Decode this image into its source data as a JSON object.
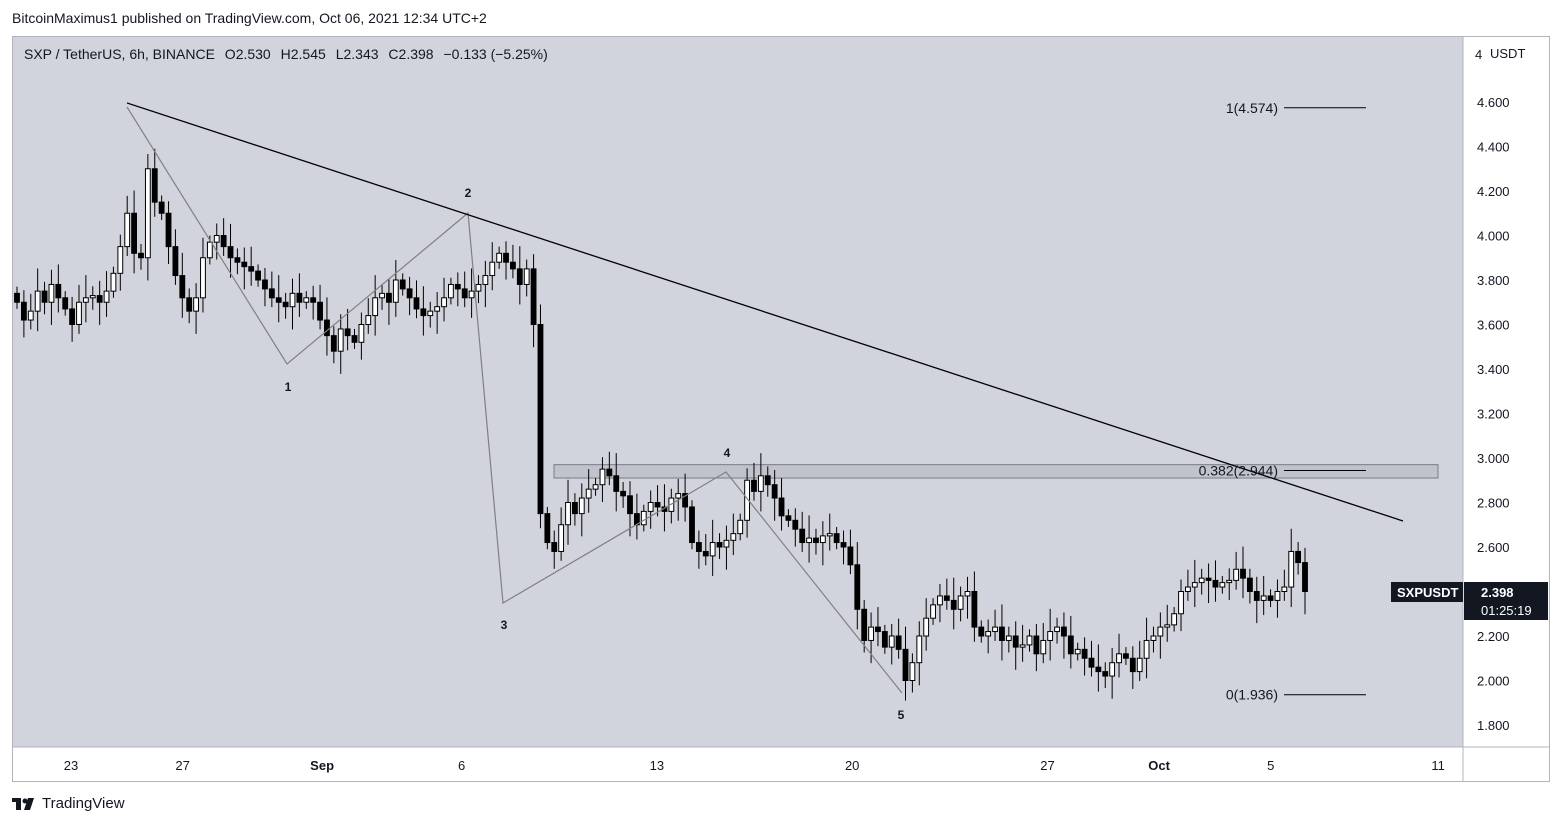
{
  "header": {
    "publisher_line": "BitcoinMaximus1 published on TradingView.com, Oct 06, 2021 12:34 UTC+2"
  },
  "ohlc_bar": {
    "symbol_line": "SXP / TetherUS, 6h, BINANCE",
    "o_label": "O",
    "o_value": "2.530",
    "h_label": "H",
    "h_value": "2.545",
    "l_label": "L",
    "l_value": "2.343",
    "c_label": "C",
    "c_value": "2.398",
    "change": "−0.133 (−5.25%)"
  },
  "price_axis": {
    "unit": "USDT",
    "top_label": "4",
    "ticks": [
      "4.600",
      "4.400",
      "4.200",
      "4.000",
      "3.800",
      "3.600",
      "3.400",
      "3.200",
      "3.000",
      "2.800",
      "2.600",
      "2.200",
      "2.000",
      "1.800"
    ]
  },
  "time_axis": {
    "ticks": [
      "23",
      "27",
      "Sep",
      "6",
      "13",
      "20",
      "27",
      "Oct",
      "5",
      "11"
    ]
  },
  "price_tag": {
    "symbol": "SXPUSDT",
    "price": "2.398",
    "countdown": "01:25:19"
  },
  "fib_levels": [
    {
      "label": "1(4.574)",
      "value": 4.574
    },
    {
      "label": "0.382(2.944)",
      "value": 2.944
    },
    {
      "label": "0(1.936)",
      "value": 1.936
    }
  ],
  "wave_labels": [
    "1",
    "2",
    "3",
    "4",
    "5"
  ],
  "colors": {
    "background": "#d1d4dc",
    "up_candle": "#ffffff",
    "down_candle": "#000000",
    "trendline": "#000000",
    "wave_line": "#808080",
    "zone_fill": "#b2b5be"
  },
  "footer": {
    "brand": "TradingView"
  },
  "chart_data": {
    "type": "candlestick",
    "symbol": "SXP / TetherUS",
    "interval": "6h",
    "exchange": "BINANCE",
    "ylim": [
      1.75,
      4.95
    ],
    "x_dates": [
      "Aug 23",
      "Aug 27",
      "Sep 1",
      "Sep 6",
      "Sep 13",
      "Sep 20",
      "Sep 27",
      "Oct 1",
      "Oct 5",
      "Oct 11"
    ],
    "wave_points": [
      {
        "label": "",
        "date": "Aug 24",
        "price": 4.55
      },
      {
        "label": "1",
        "date": "Aug 30",
        "price": 3.42
      },
      {
        "label": "2",
        "date": "Sep 6",
        "price": 4.1
      },
      {
        "label": "3",
        "date": "Sep 7",
        "price": 2.36
      },
      {
        "label": "4",
        "date": "Sep 15",
        "price": 2.94
      },
      {
        "label": "5",
        "date": "Sep 22",
        "price": 1.95
      }
    ],
    "trendline": [
      {
        "date": "Aug 24",
        "price": 4.6
      },
      {
        "date": "Oct 10",
        "price": 2.72
      }
    ],
    "resistance_zone": {
      "from": 2.91,
      "to": 2.97
    },
    "closes": [
      3.7,
      3.62,
      3.66,
      3.75,
      3.7,
      3.78,
      3.72,
      3.67,
      3.6,
      3.7,
      3.72,
      3.73,
      3.7,
      3.75,
      3.83,
      3.95,
      4.1,
      3.92,
      3.9,
      4.3,
      4.15,
      4.1,
      3.95,
      3.82,
      3.72,
      3.66,
      3.72,
      3.9,
      3.97,
      4.0,
      3.95,
      3.9,
      3.88,
      3.86,
      3.84,
      3.8,
      3.76,
      3.72,
      3.7,
      3.68,
      3.74,
      3.7,
      3.72,
      3.7,
      3.62,
      3.55,
      3.48,
      3.58,
      3.55,
      3.52,
      3.6,
      3.64,
      3.72,
      3.74,
      3.7,
      3.8,
      3.76,
      3.72,
      3.67,
      3.64,
      3.66,
      3.68,
      3.72,
      3.78,
      3.76,
      3.72,
      3.75,
      3.78,
      3.82,
      3.88,
      3.92,
      3.88,
      3.85,
      3.78,
      3.85,
      3.6,
      2.75,
      2.62,
      2.58,
      2.7,
      2.8,
      2.75,
      2.82,
      2.86,
      2.88,
      2.95,
      2.92,
      2.85,
      2.83,
      2.75,
      2.7,
      2.76,
      2.8,
      2.78,
      2.76,
      2.82,
      2.84,
      2.78,
      2.62,
      2.58,
      2.56,
      2.62,
      2.6,
      2.63,
      2.66,
      2.72,
      2.9,
      2.85,
      2.92,
      2.88,
      2.82,
      2.74,
      2.72,
      2.68,
      2.62,
      2.64,
      2.62,
      2.65,
      2.66,
      2.62,
      2.6,
      2.52,
      2.32,
      2.18,
      2.24,
      2.22,
      2.15,
      2.2,
      2.14,
      2.0,
      2.08,
      2.2,
      2.28,
      2.34,
      2.38,
      2.36,
      2.32,
      2.38,
      2.4,
      2.24,
      2.2,
      2.22,
      2.24,
      2.18,
      2.2,
      2.15,
      2.16,
      2.2,
      2.12,
      2.18,
      2.22,
      2.24,
      2.2,
      2.12,
      2.14,
      2.1,
      2.06,
      2.04,
      2.02,
      2.08,
      2.12,
      2.1,
      2.04,
      2.1,
      2.18,
      2.2,
      2.24,
      2.25,
      2.3,
      2.4,
      2.42,
      2.44,
      2.46,
      2.45,
      2.42,
      2.44,
      2.45,
      2.5,
      2.46,
      2.4,
      2.36,
      2.38,
      2.36,
      2.4,
      2.42,
      2.58,
      2.53,
      2.4
    ]
  }
}
